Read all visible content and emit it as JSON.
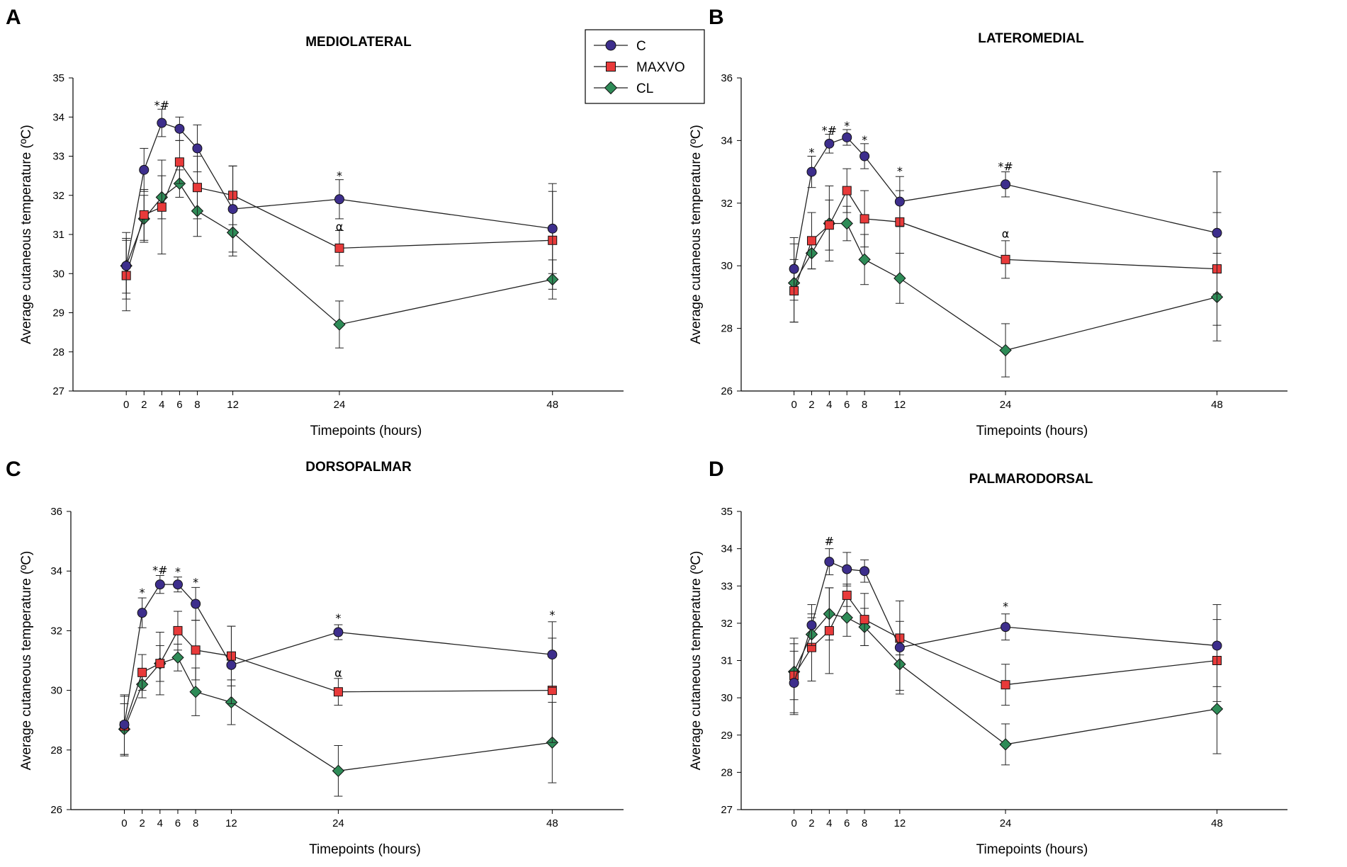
{
  "colors": {
    "C": "#3d2e8c",
    "MAXVO": "#e83a3a",
    "CL": "#2e8b57",
    "line": "#222222"
  },
  "legend": {
    "entries": [
      {
        "key": "C",
        "label": "C",
        "marker": "circle"
      },
      {
        "key": "MAXVO",
        "label": "MAXVO",
        "marker": "square"
      },
      {
        "key": "CL",
        "label": "CL",
        "marker": "diamond"
      }
    ]
  },
  "chart_data": [
    {
      "type": "line",
      "letter": "A",
      "title": "MEDIOLATERAL",
      "xlabel": "Timepoints (hours)",
      "ylabel": "Average cutaneous temperature (ºC)",
      "x": [
        0,
        2,
        4,
        6,
        8,
        12,
        24,
        48
      ],
      "xticks": [
        0,
        2,
        4,
        6,
        8,
        12,
        24,
        48
      ],
      "xlim": [
        -6,
        56
      ],
      "ylim": [
        27,
        35
      ],
      "yticks": [
        27,
        28,
        29,
        30,
        31,
        32,
        33,
        34,
        35
      ],
      "series": [
        {
          "name": "C",
          "values": [
            30.2,
            32.65,
            33.85,
            33.7,
            33.2,
            31.65,
            31.9,
            31.15
          ],
          "errors": [
            0.85,
            0.55,
            0.35,
            0.3,
            0.6,
            1.1,
            0.5,
            1.15
          ]
        },
        {
          "name": "MAXVO",
          "values": [
            29.95,
            31.5,
            31.7,
            32.85,
            32.2,
            32.0,
            30.65,
            30.85
          ],
          "errors": [
            0.9,
            0.65,
            1.2,
            0.55,
            0.8,
            0.75,
            0.45,
            1.25
          ]
        },
        {
          "name": "CL",
          "values": [
            30.2,
            31.4,
            31.95,
            32.3,
            31.6,
            31.05,
            28.7,
            29.85
          ],
          "errors": [
            0.7,
            0.6,
            0.55,
            0.35,
            0.65,
            0.6,
            0.6,
            0.5
          ]
        }
      ],
      "annotations": [
        {
          "x": 4,
          "y": 34.2,
          "text": "*#"
        },
        {
          "x": 24,
          "y": 32.4,
          "text": "*"
        },
        {
          "x": 24,
          "y": 31.1,
          "text": "α"
        }
      ]
    },
    {
      "type": "line",
      "letter": "B",
      "title": "LATEROMEDIAL",
      "xlabel": "Timepoints (hours)",
      "ylabel": "Average cutaneous temperature (ºC)",
      "x": [
        0,
        2,
        4,
        6,
        8,
        12,
        24,
        48
      ],
      "xticks": [
        0,
        2,
        4,
        6,
        8,
        12,
        24,
        48
      ],
      "xlim": [
        -6,
        56
      ],
      "ylim": [
        26,
        36
      ],
      "yticks": [
        26,
        28,
        30,
        32,
        34,
        36
      ],
      "series": [
        {
          "name": "C",
          "values": [
            29.9,
            33.0,
            33.9,
            34.1,
            33.5,
            32.05,
            32.6,
            31.05
          ],
          "errors": [
            1.0,
            0.5,
            0.3,
            0.25,
            0.4,
            0.8,
            0.4,
            1.95
          ]
        },
        {
          "name": "MAXVO",
          "values": [
            29.2,
            30.8,
            31.3,
            32.4,
            31.5,
            31.4,
            30.2,
            29.9
          ],
          "errors": [
            1.0,
            0.9,
            0.8,
            0.7,
            0.9,
            1.0,
            0.6,
            1.8
          ]
        },
        {
          "name": "CL",
          "values": [
            29.45,
            30.4,
            31.35,
            31.35,
            30.2,
            29.6,
            27.3,
            29.0
          ],
          "errors": [
            1.25,
            0.5,
            1.2,
            0.55,
            0.8,
            0.8,
            0.85,
            1.4
          ]
        }
      ],
      "annotations": [
        {
          "x": 2,
          "y": 33.5,
          "text": "*"
        },
        {
          "x": 4,
          "y": 34.2,
          "text": "*#"
        },
        {
          "x": 6,
          "y": 34.35,
          "text": "*"
        },
        {
          "x": 8,
          "y": 33.9,
          "text": "*"
        },
        {
          "x": 12,
          "y": 32.9,
          "text": "*"
        },
        {
          "x": 24,
          "y": 33.05,
          "text": "*#"
        },
        {
          "x": 24,
          "y": 30.9,
          "text": "α"
        }
      ]
    },
    {
      "type": "line",
      "letter": "C",
      "title": "DORSOPALMAR",
      "xlabel": "Timepoints (hours)",
      "ylabel": "Average cutaneous temperature (ºC)",
      "x": [
        0,
        2,
        4,
        6,
        8,
        12,
        24,
        48
      ],
      "xticks": [
        0,
        2,
        4,
        6,
        8,
        12,
        24,
        48
      ],
      "xlim": [
        -6,
        56
      ],
      "ylim": [
        26,
        36
      ],
      "yticks": [
        26,
        28,
        30,
        32,
        34,
        36
      ],
      "series": [
        {
          "name": "C",
          "values": [
            28.85,
            32.6,
            33.55,
            33.55,
            32.9,
            30.85,
            31.95,
            31.2
          ],
          "errors": [
            1.0,
            0.5,
            0.3,
            0.25,
            0.55,
            1.3,
            0.25,
            1.1
          ]
        },
        {
          "name": "MAXVO",
          "values": [
            28.8,
            30.6,
            30.9,
            32.0,
            31.35,
            31.15,
            29.95,
            30.0
          ],
          "errors": [
            1.0,
            0.6,
            1.05,
            0.65,
            1.0,
            1.0,
            0.45,
            1.75
          ]
        },
        {
          "name": "CL",
          "values": [
            28.7,
            30.2,
            30.9,
            31.1,
            29.95,
            29.6,
            27.3,
            28.25
          ],
          "errors": [
            0.85,
            0.45,
            0.6,
            0.45,
            0.8,
            0.75,
            0.85,
            1.35
          ]
        }
      ],
      "annotations": [
        {
          "x": 2,
          "y": 33.15,
          "text": "*"
        },
        {
          "x": 4,
          "y": 33.9,
          "text": "*#"
        },
        {
          "x": 6,
          "y": 33.85,
          "text": "*"
        },
        {
          "x": 8,
          "y": 33.5,
          "text": "*"
        },
        {
          "x": 24,
          "y": 32.3,
          "text": "*"
        },
        {
          "x": 24,
          "y": 30.45,
          "text": "α"
        },
        {
          "x": 48,
          "y": 32.4,
          "text": "*"
        }
      ]
    },
    {
      "type": "line",
      "letter": "D",
      "title": "PALMARODORSAL",
      "xlabel": "Timepoints (hours)",
      "ylabel": "Average cutaneous temperature (ºC)",
      "x": [
        0,
        2,
        4,
        6,
        8,
        12,
        24,
        48
      ],
      "xticks": [
        0,
        2,
        4,
        6,
        8,
        12,
        24,
        48
      ],
      "xlim": [
        -6,
        56
      ],
      "ylim": [
        27,
        35
      ],
      "yticks": [
        27,
        28,
        29,
        30,
        31,
        32,
        33,
        34,
        35
      ],
      "series": [
        {
          "name": "C",
          "values": [
            30.4,
            31.95,
            33.65,
            33.45,
            33.4,
            31.35,
            31.9,
            31.4
          ],
          "errors": [
            0.85,
            0.55,
            0.35,
            0.45,
            0.3,
            1.25,
            0.35,
            1.1
          ]
        },
        {
          "name": "MAXVO",
          "values": [
            30.6,
            31.35,
            31.8,
            32.75,
            32.1,
            31.6,
            30.35,
            31.0
          ],
          "errors": [
            1.0,
            0.9,
            1.15,
            0.3,
            0.7,
            0.45,
            0.55,
            1.1
          ]
        },
        {
          "name": "CL",
          "values": [
            30.7,
            31.7,
            32.25,
            32.15,
            31.9,
            30.9,
            28.75,
            29.7
          ],
          "errors": [
            0.75,
            0.45,
            0.7,
            0.5,
            0.5,
            0.7,
            0.55,
            1.2
          ]
        }
      ],
      "annotations": [
        {
          "x": 4,
          "y": 34.1,
          "text": "#"
        },
        {
          "x": 24,
          "y": 32.35,
          "text": "*"
        }
      ]
    }
  ]
}
